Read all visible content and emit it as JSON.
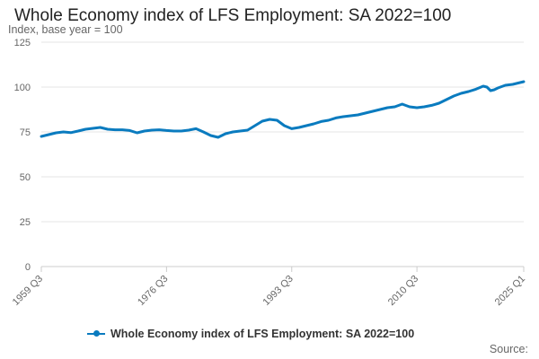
{
  "colors": {
    "series": "#0a7bbf",
    "grid": "#e6e6e6",
    "axis": "#cccccc"
  },
  "source_label": "Source:",
  "chart_data": {
    "type": "line",
    "title": "Whole Economy index of LFS Employment: SA 2022=100",
    "ylabel": "Index, base year = 100",
    "xlabel": "",
    "ylim": [
      0,
      125
    ],
    "yticks": [
      0,
      25,
      50,
      75,
      100,
      125
    ],
    "xlim": [
      1959.5,
      2025.0
    ],
    "xticks": [
      {
        "x": 1959.5,
        "label": "1959 Q3"
      },
      {
        "x": 1976.5,
        "label": "1976 Q3"
      },
      {
        "x": 1993.5,
        "label": "1993 Q3"
      },
      {
        "x": 2010.5,
        "label": "2010 Q3"
      },
      {
        "x": 2025.0,
        "label": "2025 Q1"
      }
    ],
    "grid": true,
    "legend_position": "bottom",
    "series": [
      {
        "name": "Whole Economy index of LFS Employment: SA 2022=100",
        "x": [
          1959.5,
          1960.5,
          1961.5,
          1962.5,
          1963.5,
          1964.5,
          1965.5,
          1966.5,
          1967.5,
          1968.5,
          1969.5,
          1970.5,
          1971.5,
          1972.5,
          1973.5,
          1974.5,
          1975.5,
          1976.5,
          1977.5,
          1978.5,
          1979.5,
          1980.5,
          1981.5,
          1982.5,
          1983.5,
          1984.5,
          1985.5,
          1986.5,
          1987.5,
          1988.5,
          1989.5,
          1990.5,
          1991.5,
          1992.5,
          1993.5,
          1994.5,
          1995.5,
          1996.5,
          1997.5,
          1998.5,
          1999.5,
          2000.5,
          2001.5,
          2002.5,
          2003.5,
          2004.5,
          2005.5,
          2006.5,
          2007.5,
          2008.5,
          2009.5,
          2010.5,
          2011.5,
          2012.5,
          2013.5,
          2014.5,
          2015.5,
          2016.5,
          2017.5,
          2018.5,
          2019.5,
          2020.0,
          2020.5,
          2021.0,
          2021.5,
          2022.5,
          2023.5,
          2024.5,
          2025.0
        ],
        "values": [
          72.5,
          73.5,
          74.5,
          75.0,
          74.6,
          75.5,
          76.5,
          77.0,
          77.5,
          76.5,
          76.2,
          76.2,
          75.8,
          74.5,
          75.5,
          76.0,
          76.2,
          75.8,
          75.5,
          75.5,
          76.0,
          76.8,
          75.0,
          73.0,
          72.0,
          74.0,
          75.0,
          75.5,
          76.0,
          78.5,
          81.0,
          82.0,
          81.5,
          78.5,
          76.8,
          77.5,
          78.5,
          79.5,
          80.8,
          81.5,
          82.8,
          83.5,
          84.0,
          84.5,
          85.5,
          86.5,
          87.5,
          88.5,
          89.0,
          90.5,
          89.0,
          88.5,
          89.0,
          89.8,
          91.0,
          93.0,
          95.0,
          96.5,
          97.5,
          98.8,
          100.5,
          100.0,
          98.0,
          98.5,
          99.5,
          101.0,
          101.5,
          102.5,
          103.0
        ]
      }
    ]
  }
}
